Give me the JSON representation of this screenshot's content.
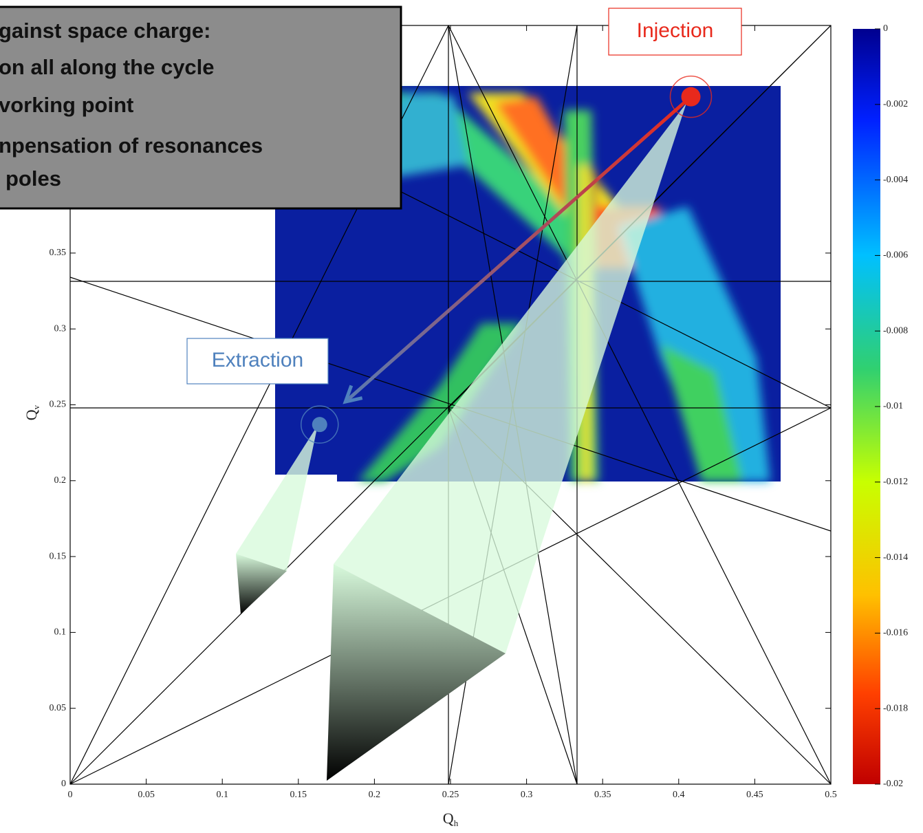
{
  "chart_data": {
    "type": "tune-diagram",
    "xlabel": "Q",
    "xlabel_sub": "h",
    "ylabel": "Q",
    "ylabel_sub": "v",
    "xlim": [
      0,
      0.5
    ],
    "ylim": [
      0,
      0.5
    ],
    "xticks": [
      0,
      0.05,
      0.1,
      0.15,
      0.2,
      0.25,
      0.3,
      0.35,
      0.4,
      0.45,
      0.5
    ],
    "yticks": [
      0,
      0.05,
      0.1,
      0.15,
      0.2,
      0.25,
      0.3,
      0.35
    ],
    "colorbar": {
      "lim": [
        -0.02,
        0
      ],
      "ticks": [
        0,
        -0.002,
        -0.004,
        -0.006,
        -0.008,
        -0.01,
        -0.012,
        -0.014,
        -0.016,
        -0.018,
        -0.02
      ]
    },
    "annotations": [
      {
        "text": "Injection",
        "x": 0.408,
        "y": 0.453,
        "color": "#e8291c"
      },
      {
        "text": "Extraction",
        "x": 0.164,
        "y": 0.237,
        "color": "#4f81bd"
      }
    ],
    "textbox": [
      "gainst space charge:",
      "on all along the cycle",
      "vorking point",
      "npensation of resonances",
      "poles"
    ]
  }
}
